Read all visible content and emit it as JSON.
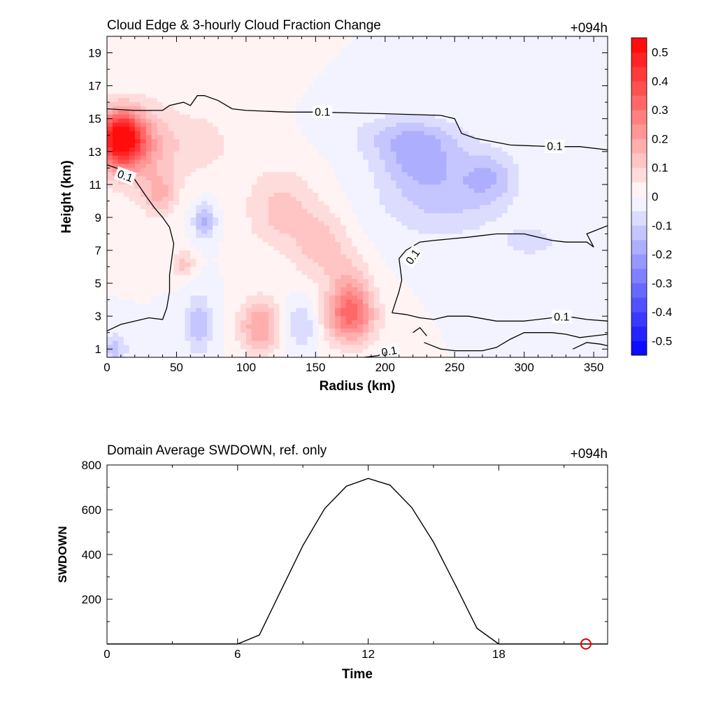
{
  "chart_data": [
    {
      "type": "heatmap",
      "title": "Cloud Edge & 3-hourly Cloud Fraction Change",
      "time_label": "+094h",
      "xlabel": "Radius (km)",
      "ylabel": "Height (km)",
      "xlim": [
        0,
        360
      ],
      "ylim": [
        0.5,
        20
      ],
      "xticks": [
        0,
        50,
        100,
        150,
        200,
        250,
        300,
        350
      ],
      "yticks": [
        1,
        3,
        5,
        7,
        9,
        11,
        13,
        15,
        17,
        19
      ],
      "contour_level_label": "0.1",
      "colorbar": {
        "ticks": [
          0.5,
          0.4,
          0.3,
          0.2,
          0.1,
          0,
          -0.1,
          -0.2,
          -0.3,
          -0.4,
          -0.5
        ],
        "tick_labels": [
          "0.5",
          "0.4",
          "0.3",
          "0.2",
          "0.1",
          "0",
          "-0.1",
          "-0.2",
          "-0.3",
          "-0.4",
          "-0.5"
        ],
        "range": [
          -0.55,
          0.55
        ],
        "levels": 22,
        "positive_color": "#ff0000",
        "negative_color": "#0000ff"
      },
      "field_blobs": [
        {
          "x": 10,
          "y": 13.8,
          "rx": 16,
          "ry": 1.6,
          "v": 0.5
        },
        {
          "x": 22,
          "y": 13.2,
          "rx": 28,
          "ry": 2.6,
          "v": 0.17
        },
        {
          "x": 38,
          "y": 10.3,
          "rx": 12,
          "ry": 1.3,
          "v": 0.13
        },
        {
          "x": 55,
          "y": 6.2,
          "rx": 8,
          "ry": 0.9,
          "v": 0.12
        },
        {
          "x": 70,
          "y": 13.5,
          "rx": 30,
          "ry": 2.5,
          "v": 0.06
        },
        {
          "x": 125,
          "y": 9.5,
          "rx": 25,
          "ry": 2.5,
          "v": 0.12
        },
        {
          "x": 155,
          "y": 7.2,
          "rx": 20,
          "ry": 2.2,
          "v": 0.12
        },
        {
          "x": 110,
          "y": 2.4,
          "rx": 15,
          "ry": 1.7,
          "v": 0.2
        },
        {
          "x": 175,
          "y": 3.0,
          "rx": 18,
          "ry": 1.7,
          "v": 0.3
        },
        {
          "x": 175,
          "y": 5.0,
          "rx": 14,
          "ry": 1.8,
          "v": 0.1
        },
        {
          "x": 70,
          "y": 8.8,
          "rx": 8,
          "ry": 1.1,
          "v": -0.16
        },
        {
          "x": 66,
          "y": 2.5,
          "rx": 10,
          "ry": 1.8,
          "v": -0.14
        },
        {
          "x": 5,
          "y": 1.0,
          "rx": 10,
          "ry": 0.9,
          "v": -0.13
        },
        {
          "x": 140,
          "y": 2.5,
          "rx": 12,
          "ry": 1.6,
          "v": -0.1
        },
        {
          "x": 225,
          "y": 12.5,
          "rx": 30,
          "ry": 1.7,
          "v": -0.14
        },
        {
          "x": 215,
          "y": 14.0,
          "rx": 40,
          "ry": 1.3,
          "v": -0.1
        },
        {
          "x": 240,
          "y": 10.0,
          "rx": 45,
          "ry": 2.3,
          "v": -0.11
        },
        {
          "x": 275,
          "y": 11.5,
          "rx": 20,
          "ry": 1.6,
          "v": -0.12
        },
        {
          "x": 305,
          "y": 7.5,
          "rx": 20,
          "ry": 0.8,
          "v": -0.09
        }
      ],
      "contours": [
        {
          "points": [
            [
              0,
              15.6
            ],
            [
              20,
              15.5
            ],
            [
              40,
              15.5
            ],
            [
              45,
              15.8
            ],
            [
              55,
              16.0
            ],
            [
              60,
              15.8
            ],
            [
              65,
              16.4
            ],
            [
              70,
              16.4
            ],
            [
              80,
              16.1
            ],
            [
              90,
              15.6
            ],
            [
              100,
              15.5
            ],
            [
              130,
              15.4
            ],
            [
              150,
              15.4
            ],
            [
              200,
              15.3
            ],
            [
              240,
              15.2
            ],
            [
              250,
              15.0
            ],
            [
              255,
              14.1
            ],
            [
              265,
              13.8
            ],
            [
              290,
              13.4
            ],
            [
              320,
              13.3
            ],
            [
              340,
              13.3
            ],
            [
              360,
              13.1
            ]
          ],
          "labels": [
            {
              "x": 155,
              "y": 15.4,
              "angle": 0
            },
            {
              "x": 322,
              "y": 13.3,
              "angle": 0
            }
          ]
        },
        {
          "points": [
            [
              0,
              12.2
            ],
            [
              10,
              11.9
            ],
            [
              20,
              11.3
            ],
            [
              28,
              10.3
            ],
            [
              34,
              9.6
            ],
            [
              40,
              9.0
            ],
            [
              45,
              8.4
            ],
            [
              48,
              7.4
            ],
            [
              45,
              5.5
            ],
            [
              45,
              4.5
            ],
            [
              43,
              3.5
            ],
            [
              40,
              2.8
            ],
            [
              30,
              2.9
            ],
            [
              20,
              2.7
            ],
            [
              10,
              2.5
            ],
            [
              0,
              2.1
            ]
          ],
          "labels": [
            {
              "x": 13,
              "y": 11.5,
              "angle": 20
            }
          ]
        },
        {
          "points": [
            [
              185,
              0.5
            ],
            [
              195,
              0.6
            ],
            [
              200,
              0.8
            ],
            [
              205,
              0.9
            ],
            [
              210,
              0.9
            ]
          ],
          "labels": [
            {
              "x": 203,
              "y": 0.85,
              "angle": -10
            }
          ]
        },
        {
          "points": [
            [
              205,
              3.2
            ],
            [
              210,
              4.5
            ],
            [
              212,
              5.2
            ],
            [
              210,
              6.5
            ],
            [
              215,
              7.0
            ],
            [
              225,
              7.5
            ],
            [
              235,
              7.6
            ],
            [
              260,
              7.8
            ],
            [
              270,
              7.9
            ],
            [
              280,
              8.0
            ],
            [
              300,
              8.0
            ],
            [
              320,
              7.6
            ],
            [
              330,
              7.5
            ],
            [
              345,
              7.5
            ],
            [
              350,
              7.2
            ],
            [
              345,
              8.0
            ],
            [
              360,
              8.5
            ]
          ],
          "labels": [
            {
              "x": 220,
              "y": 6.6,
              "angle": -55
            }
          ]
        },
        {
          "points": [
            [
              205,
              3.2
            ],
            [
              215,
              3.1
            ],
            [
              225,
              2.9
            ],
            [
              235,
              2.8
            ],
            [
              245,
              3.0
            ],
            [
              260,
              3.0
            ],
            [
              280,
              2.7
            ],
            [
              300,
              2.7
            ],
            [
              320,
              2.9
            ],
            [
              330,
              3.0
            ],
            [
              345,
              2.8
            ],
            [
              360,
              2.7
            ]
          ],
          "labels": [
            {
              "x": 327,
              "y": 2.95,
              "angle": 0
            }
          ]
        },
        {
          "points": [
            [
              220,
              2.0
            ],
            [
              225,
              2.3
            ],
            [
              230,
              1.8
            ]
          ],
          "labels": []
        },
        {
          "points": [
            [
              228,
              1.4
            ],
            [
              240,
              1.0
            ],
            [
              250,
              0.9
            ],
            [
              270,
              0.9
            ],
            [
              280,
              1.1
            ],
            [
              290,
              1.6
            ],
            [
              300,
              2.0
            ],
            [
              320,
              2.0
            ],
            [
              330,
              1.9
            ],
            [
              340,
              1.7
            ],
            [
              350,
              1.8
            ],
            [
              360,
              1.9
            ]
          ],
          "labels": []
        },
        {
          "points": [
            [
              335,
              1.0
            ],
            [
              345,
              1.4
            ],
            [
              355,
              1.3
            ],
            [
              360,
              1.2
            ]
          ],
          "labels": []
        }
      ]
    },
    {
      "type": "line",
      "title": "Domain Average SWDOWN, ref. only",
      "time_label": "+094h",
      "xlabel": "Time",
      "ylabel": "SWDOWN",
      "xlim": [
        0,
        23
      ],
      "ylim": [
        0,
        800
      ],
      "xticks": [
        0,
        6,
        12,
        18
      ],
      "yticks": [
        200,
        400,
        600,
        800
      ],
      "series": [
        {
          "name": "",
          "color": "#000000",
          "x": [
            0,
            1,
            2,
            3,
            4,
            5,
            6,
            7,
            8,
            9,
            10,
            11,
            12,
            13,
            14,
            15,
            16,
            17,
            18,
            19,
            20,
            21,
            22,
            23
          ],
          "y": [
            0,
            0,
            0,
            0,
            0,
            0,
            0,
            40,
            240,
            440,
            605,
            705,
            740,
            710,
            610,
            455,
            265,
            70,
            0,
            0,
            0,
            0,
            0,
            0
          ]
        }
      ],
      "marker": {
        "x": 22,
        "y": 0,
        "color": "#e00000",
        "shape": "circle"
      }
    }
  ]
}
